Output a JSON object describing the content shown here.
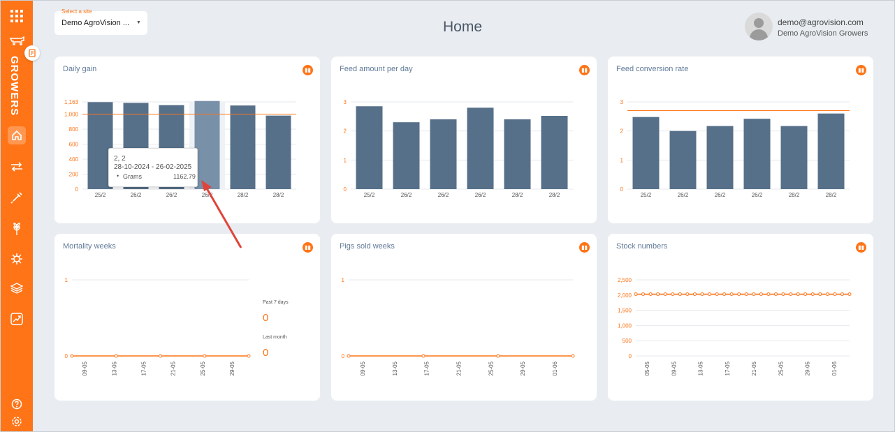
{
  "sidebar": {
    "brand_label": "GROWERS",
    "icons": [
      "grid-menu-icon",
      "pig-icon",
      "clipboard-icon",
      "home-icon",
      "transfer-arrows-icon",
      "syringe-icon",
      "wheat-icon",
      "virus-icon",
      "layers-icon",
      "report-chart-icon",
      "help-icon",
      "settings-icon"
    ]
  },
  "header": {
    "site_label": "Select a site",
    "site_value": "Demo AgroVision ...",
    "title": "Home",
    "user_email": "demo@agrovision.com",
    "user_org": "Demo AgroVision Growers"
  },
  "colors": {
    "accent": "#ff7417",
    "bar": "#577089",
    "bar_highlight": "#7890a8",
    "background": "#e9edf1"
  },
  "cards": {
    "daily_gain": {
      "title": "Daily gain"
    },
    "feed_amount": {
      "title": "Feed amount per day"
    },
    "fcr": {
      "title": "Feed conversion rate"
    },
    "mortality": {
      "title": "Mortality weeks",
      "past7_label": "Past 7 days",
      "past7_value": "0",
      "last_month_label": "Last month",
      "last_month_value": "0"
    },
    "pigs_sold": {
      "title": "Pigs sold weeks"
    },
    "stock": {
      "title": "Stock numbers"
    }
  },
  "tooltip": {
    "title": "2, 2",
    "range": "28-10-2024 - 26-02-2025",
    "series": "Grams",
    "value": "1162.79"
  },
  "chart_data": [
    {
      "id": "daily_gain",
      "type": "bar",
      "title": "Daily gain",
      "categories": [
        "25/2",
        "26/2",
        "26/2",
        "26/2",
        "28/2",
        "28/2"
      ],
      "values": [
        1160,
        1150,
        1120,
        1175,
        1115,
        980
      ],
      "ylim": [
        0,
        1163
      ],
      "ytick_labels": [
        "0",
        "200",
        "400",
        "600",
        "800",
        "1,000",
        "1,163"
      ],
      "yticks": [
        0,
        200,
        400,
        600,
        800,
        1000,
        1163
      ],
      "reference_line": 1000,
      "highlight_index": 3,
      "grid": true
    },
    {
      "id": "feed_amount",
      "type": "bar",
      "title": "Feed amount per day",
      "categories": [
        "25/2",
        "26/2",
        "26/2",
        "26/2",
        "28/2",
        "28/2"
      ],
      "values": [
        2.85,
        2.3,
        2.4,
        2.8,
        2.4,
        2.52
      ],
      "ylim": [
        0,
        3
      ],
      "ytick_labels": [
        "0",
        "1",
        "2",
        "3"
      ],
      "yticks": [
        0,
        1,
        2,
        3
      ],
      "grid": true
    },
    {
      "id": "fcr",
      "type": "bar",
      "title": "Feed conversion rate",
      "categories": [
        "25/2",
        "26/2",
        "26/2",
        "26/2",
        "28/2",
        "28/2"
      ],
      "values": [
        2.48,
        2.0,
        2.17,
        2.42,
        2.17,
        2.6
      ],
      "ylim": [
        0,
        3
      ],
      "ytick_labels": [
        "0",
        "1",
        "2",
        "3"
      ],
      "yticks": [
        0,
        1,
        2,
        3
      ],
      "reference_line": 2.7,
      "grid": true
    },
    {
      "id": "mortality",
      "type": "line",
      "title": "Mortality weeks",
      "categories": [
        "09-05",
        "13-05",
        "17-05",
        "21-05",
        "25-05",
        "29-05"
      ],
      "points": [
        0,
        0,
        0,
        0,
        0
      ],
      "ylim": [
        0,
        1
      ],
      "ytick_labels": [
        "0",
        "1"
      ],
      "yticks": [
        0,
        1
      ],
      "grid": true
    },
    {
      "id": "pigs_sold",
      "type": "line",
      "title": "Pigs sold weeks",
      "categories": [
        "09-05",
        "13-05",
        "17-05",
        "21-05",
        "25-05",
        "29-05",
        "01-06"
      ],
      "points": [
        0,
        0,
        0,
        0
      ],
      "ylim": [
        0,
        1
      ],
      "ytick_labels": [
        "0",
        "1"
      ],
      "yticks": [
        0,
        1
      ],
      "grid": true
    },
    {
      "id": "stock",
      "type": "line",
      "title": "Stock numbers",
      "categories": [
        "05-05",
        "09-05",
        "13-05",
        "17-05",
        "21-05",
        "25-05",
        "29-05",
        "01-06"
      ],
      "points": [
        2030,
        2030,
        2030,
        2030,
        2030,
        2030,
        2030,
        2030,
        2030,
        2030,
        2030,
        2030,
        2030,
        2030,
        2030,
        2030,
        2030,
        2030,
        2030,
        2030,
        2030,
        2030,
        2030,
        2030,
        2030,
        2030,
        2030,
        2030,
        2030,
        2030
      ],
      "ylim": [
        0,
        2500
      ],
      "ytick_labels": [
        "0",
        "500",
        "1,000",
        "1,500",
        "2,000",
        "2,500"
      ],
      "yticks": [
        0,
        500,
        1000,
        1500,
        2000,
        2500
      ],
      "grid": true
    }
  ]
}
